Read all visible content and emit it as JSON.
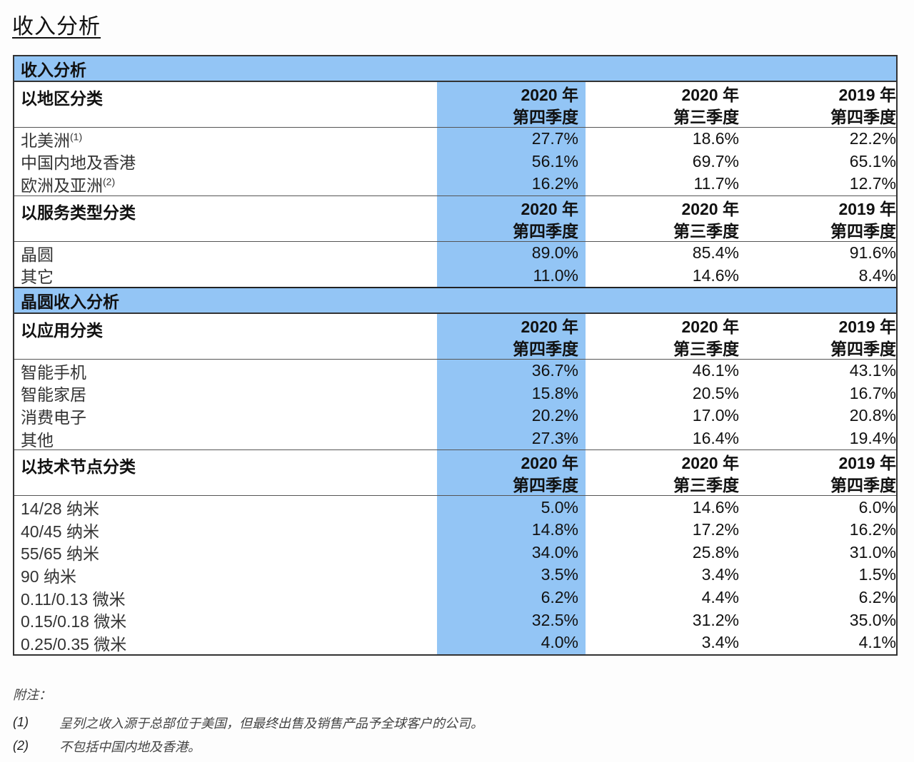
{
  "page": {
    "title": "收入分析"
  },
  "table": {
    "columns": [
      {
        "year": "2020 年",
        "quarter": "第四季度"
      },
      {
        "year": "2020 年",
        "quarter": "第三季度"
      },
      {
        "year": "2019 年",
        "quarter": "第四季度"
      }
    ],
    "highlight_color": "#93c5f5",
    "sections": [
      {
        "title": "收入分析",
        "groups": [
          {
            "label": "以地区分类",
            "header": [
              "2020 年|第四季度",
              "2020 年|第三季度",
              "2019 年|第四季度"
            ],
            "rows": [
              {
                "label": "北美洲",
                "sup": "(1)",
                "values": [
                  "27.7%",
                  "18.6%",
                  "22.2%"
                ]
              },
              {
                "label": "中国内地及香港",
                "sup": "",
                "values": [
                  "56.1%",
                  "69.7%",
                  "65.1%"
                ]
              },
              {
                "label": "欧洲及亚洲",
                "sup": "(2)",
                "values": [
                  "16.2%",
                  "11.7%",
                  "12.7%"
                ]
              }
            ]
          },
          {
            "label": "以服务类型分类",
            "rows": [
              {
                "label": "晶圆",
                "sup": "",
                "values": [
                  "89.0%",
                  "85.4%",
                  "91.6%"
                ]
              },
              {
                "label": "其它",
                "sup": "",
                "values": [
                  "11.0%",
                  "14.6%",
                  "8.4%"
                ]
              }
            ]
          }
        ]
      },
      {
        "title": "晶圆收入分析",
        "groups": [
          {
            "label": "以应用分类",
            "rows": [
              {
                "label": "智能手机",
                "sup": "",
                "values": [
                  "36.7%",
                  "46.1%",
                  "43.1%"
                ]
              },
              {
                "label": "智能家居",
                "sup": "",
                "values": [
                  "15.8%",
                  "20.5%",
                  "16.7%"
                ]
              },
              {
                "label": "消费电子",
                "sup": "",
                "values": [
                  "20.2%",
                  "17.0%",
                  "20.8%"
                ]
              },
              {
                "label": "其他",
                "sup": "",
                "values": [
                  "27.3%",
                  "16.4%",
                  "19.4%"
                ]
              }
            ]
          },
          {
            "label": "以技术节点分类",
            "rows": [
              {
                "label": "14/28  纳米",
                "sup": "",
                "values": [
                  "5.0%",
                  "14.6%",
                  "6.0%"
                ]
              },
              {
                "label": "40/45  纳米",
                "sup": "",
                "values": [
                  "14.8%",
                  "17.2%",
                  "16.2%"
                ]
              },
              {
                "label": "55/65  纳米",
                "sup": "",
                "values": [
                  "34.0%",
                  "25.8%",
                  "31.0%"
                ]
              },
              {
                "label": "90  纳米",
                "sup": "",
                "values": [
                  "3.5%",
                  "3.4%",
                  "1.5%"
                ]
              },
              {
                "label": "0.11/0.13 微米",
                "sup": "",
                "values": [
                  "6.2%",
                  "4.4%",
                  "6.2%"
                ]
              },
              {
                "label": "0.15/0.18 微米",
                "sup": "",
                "values": [
                  "32.5%",
                  "31.2%",
                  "35.0%"
                ]
              },
              {
                "label": "0.25/0.35 微米",
                "sup": "",
                "values": [
                  "4.0%",
                  "3.4%",
                  "4.1%"
                ]
              }
            ]
          }
        ]
      }
    ]
  },
  "notes": {
    "title": "附注：",
    "items": [
      {
        "num": "(1)",
        "text": "呈列之收入源于总部位于美国，但最终出售及销售产品予全球客户的公司。"
      },
      {
        "num": "(2)",
        "text": "不包括中国内地及香港。"
      }
    ]
  }
}
